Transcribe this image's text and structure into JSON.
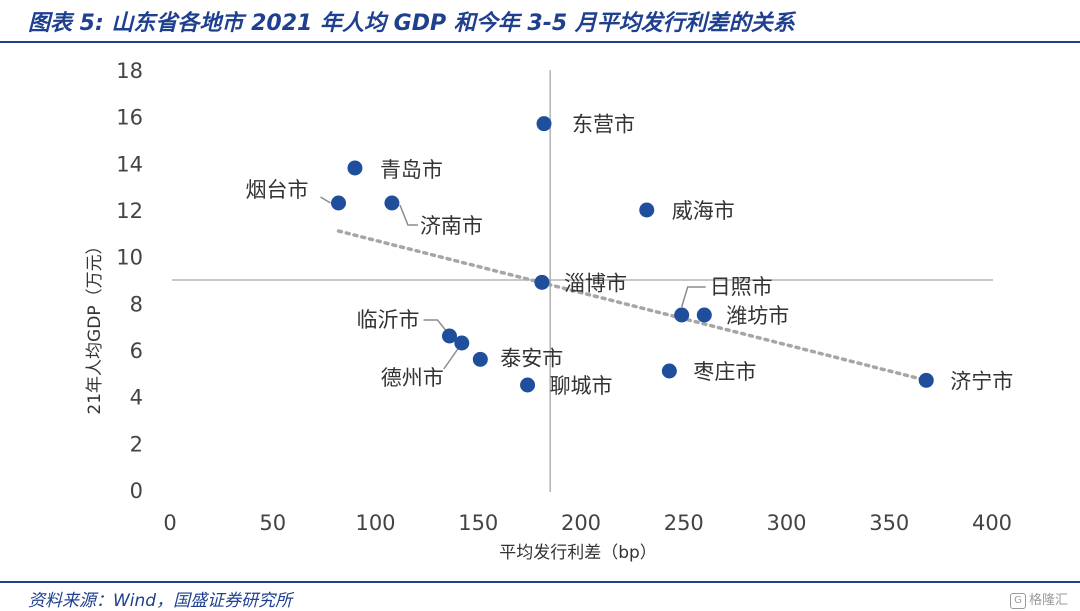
{
  "header": {
    "title": "图表 5:  山东省各地市 2021 年人均 GDP 和今年 3-5 月平均发行利差的关系"
  },
  "footer": {
    "source": "资料来源：Wind，国盛证券研究所",
    "watermark": "格隆汇"
  },
  "colors": {
    "accent": "#1f3f8f",
    "point": "#1f4e9c",
    "trendline": "#a6a6a6",
    "reference_line": "#a6a6a6"
  },
  "chart_data": {
    "type": "scatter",
    "title": "",
    "xlabel": "平均发行利差（bp）",
    "ylabel": "21年人均GDP（万元）",
    "xlim": [
      0,
      400
    ],
    "ylim": [
      0,
      18
    ],
    "xticks": [
      0,
      50,
      100,
      150,
      200,
      250,
      300,
      350,
      400
    ],
    "yticks": [
      0,
      2,
      4,
      6,
      8,
      10,
      12,
      14,
      16,
      18
    ],
    "grid": false,
    "reference_lines": {
      "x": 185,
      "y": 9.0
    },
    "trendline": {
      "type": "linear",
      "x_start": 82,
      "y_start": 11.1,
      "x_end": 368,
      "y_end": 4.7
    },
    "points": [
      {
        "name": "东营市",
        "x": 182,
        "y": 15.7
      },
      {
        "name": "青岛市",
        "x": 90,
        "y": 13.8
      },
      {
        "name": "烟台市",
        "x": 82,
        "y": 12.3
      },
      {
        "name": "济南市",
        "x": 108,
        "y": 12.3
      },
      {
        "name": "威海市",
        "x": 232,
        "y": 12.0
      },
      {
        "name": "淄博市",
        "x": 181,
        "y": 8.9
      },
      {
        "name": "日照市",
        "x": 249,
        "y": 7.5
      },
      {
        "name": "潍坊市",
        "x": 260,
        "y": 7.5
      },
      {
        "name": "临沂市",
        "x": 136,
        "y": 6.6
      },
      {
        "name": "德州市",
        "x": 142,
        "y": 6.3
      },
      {
        "name": "泰安市",
        "x": 151,
        "y": 5.6
      },
      {
        "name": "枣庄市",
        "x": 243,
        "y": 5.1
      },
      {
        "name": "聊城市",
        "x": 174,
        "y": 4.5
      },
      {
        "name": "济宁市",
        "x": 368,
        "y": 4.7
      }
    ]
  }
}
